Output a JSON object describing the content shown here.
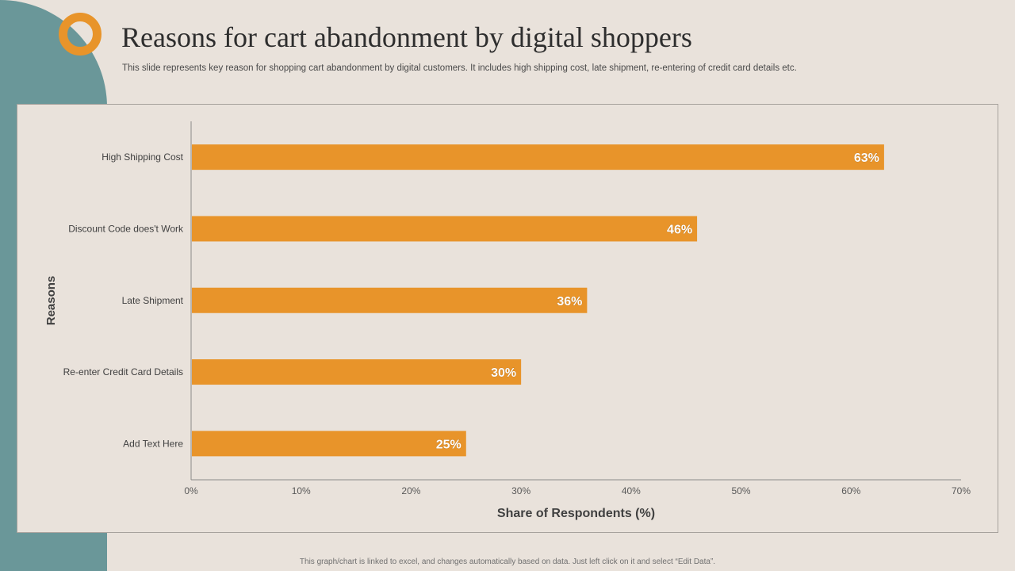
{
  "header": {
    "title": "Reasons for cart abandonment by digital shoppers",
    "subtitle": "This slide represents  key reason for shopping cart abandonment by digital customers. It includes high shipping cost, late shipment, re-entering of credit card details etc."
  },
  "footer": {
    "note": "This graph/chart is linked to excel, and changes automatically based on data. Just left click on it and select “Edit Data”."
  },
  "colors": {
    "bar": "#e8942a",
    "accent_teal": "#6a9799",
    "background": "#e9e2db"
  },
  "chart_data": {
    "type": "bar",
    "orientation": "horizontal",
    "categories": [
      "High Shipping Cost",
      "Discount Code does't Work",
      "Late Shipment",
      "Re-enter Credit Card Details",
      "Add Text Here"
    ],
    "values": [
      63,
      46,
      36,
      30,
      25
    ],
    "data_labels": [
      "63%",
      "46%",
      "36%",
      "30%",
      "25%"
    ],
    "xlabel": "Share of Respondents (%)",
    "ylabel": "Reasons",
    "xlim": [
      0,
      70
    ],
    "xticks": [
      0,
      10,
      20,
      30,
      40,
      50,
      60,
      70
    ],
    "xtick_labels": [
      "0%",
      "10%",
      "20%",
      "30%",
      "40%",
      "50%",
      "60%",
      "70%"
    ],
    "grid": false,
    "legend": "none"
  }
}
